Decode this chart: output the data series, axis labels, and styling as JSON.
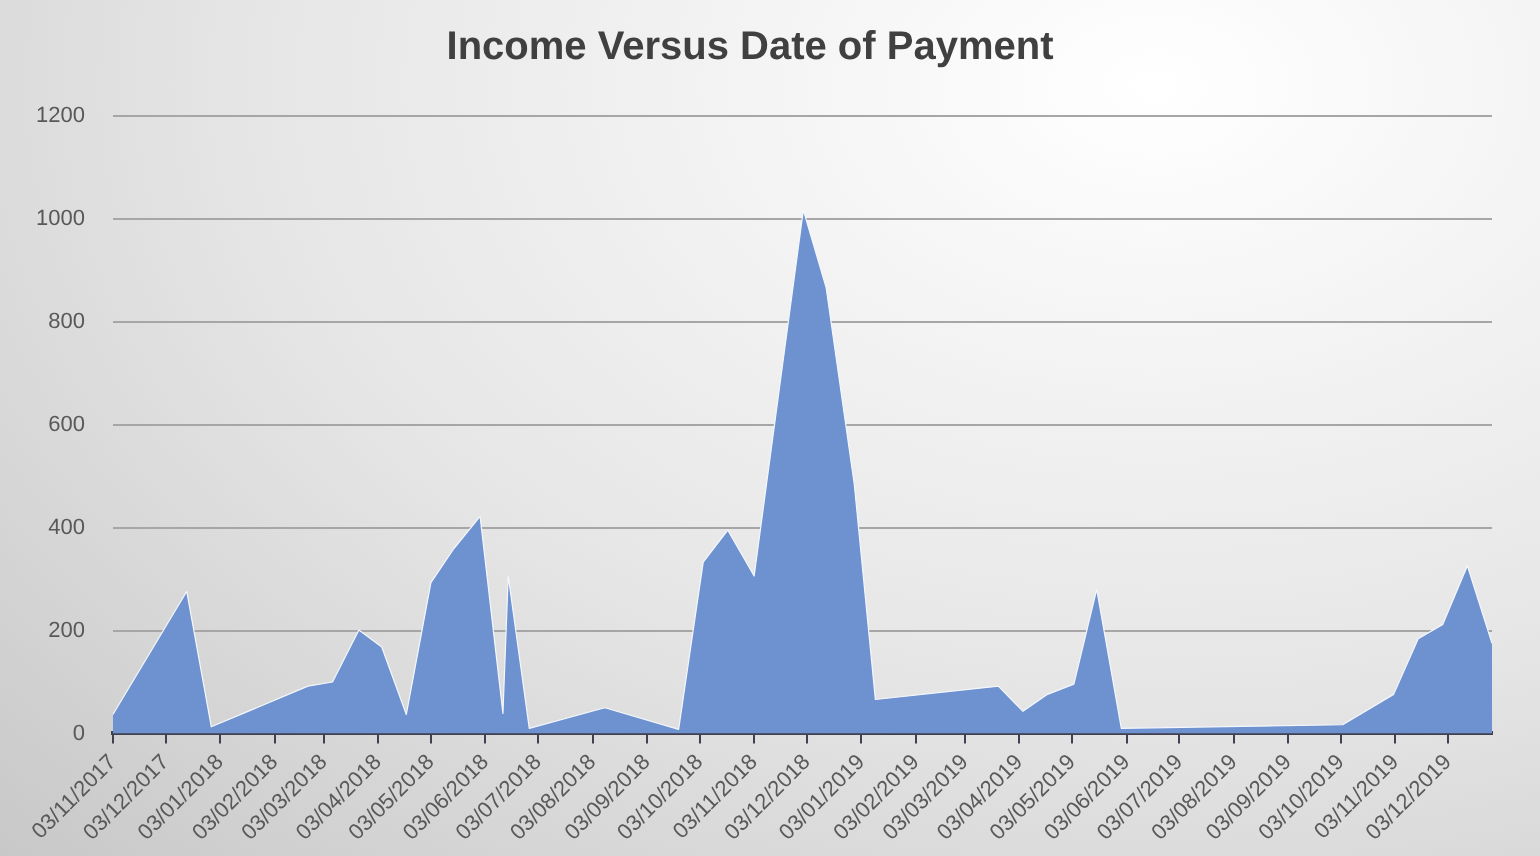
{
  "chart_data": {
    "type": "area",
    "title": "Income Versus Date of Payment",
    "x": [
      "2017-11-03",
      "2017-12-15",
      "2017-12-29",
      "2018-02-22",
      "2018-03-08",
      "2018-03-23",
      "2018-04-05",
      "2018-04-19",
      "2018-05-03",
      "2018-05-16",
      "2018-05-31",
      "2018-06-13",
      "2018-06-16",
      "2018-06-28",
      "2018-08-10",
      "2018-09-21",
      "2018-10-05",
      "2018-10-19",
      "2018-11-03",
      "2018-12-01",
      "2018-12-14",
      "2018-12-30",
      "2019-01-11",
      "2019-03-22",
      "2019-04-05",
      "2019-04-19",
      "2019-05-04",
      "2019-05-17",
      "2019-05-31",
      "2019-10-04",
      "2019-11-02",
      "2019-11-16",
      "2019-11-30",
      "2019-12-14",
      "2019-12-28"
    ],
    "values": [
      37,
      276,
      13,
      92,
      100,
      201,
      168,
      37,
      293,
      359,
      422,
      39,
      306,
      10,
      50,
      8,
      333,
      395,
      306,
      1017,
      866,
      484,
      66,
      92,
      43,
      76,
      96,
      280,
      10,
      17,
      76,
      184,
      212,
      326,
      175
    ],
    "color": "#6e92d0",
    "xlim": [
      "2017-11-03",
      "2019-12-28"
    ],
    "xticks": [
      {
        "value": "2017-11-03",
        "label": "03/11/2017"
      },
      {
        "value": "2017-12-03",
        "label": "03/12/2017"
      },
      {
        "value": "2018-01-03",
        "label": "03/01/2018"
      },
      {
        "value": "2018-02-03",
        "label": "03/02/2018"
      },
      {
        "value": "2018-03-03",
        "label": "03/03/2018"
      },
      {
        "value": "2018-04-03",
        "label": "03/04/2018"
      },
      {
        "value": "2018-05-03",
        "label": "03/05/2018"
      },
      {
        "value": "2018-06-03",
        "label": "03/06/2018"
      },
      {
        "value": "2018-07-03",
        "label": "03/07/2018"
      },
      {
        "value": "2018-08-03",
        "label": "03/08/2018"
      },
      {
        "value": "2018-09-03",
        "label": "03/09/2018"
      },
      {
        "value": "2018-10-03",
        "label": "03/10/2018"
      },
      {
        "value": "2018-11-03",
        "label": "03/11/2018"
      },
      {
        "value": "2018-12-03",
        "label": "03/12/2018"
      },
      {
        "value": "2019-01-03",
        "label": "03/01/2019"
      },
      {
        "value": "2019-02-03",
        "label": "03/02/2019"
      },
      {
        "value": "2019-03-03",
        "label": "03/03/2019"
      },
      {
        "value": "2019-04-03",
        "label": "03/04/2019"
      },
      {
        "value": "2019-05-03",
        "label": "03/05/2019"
      },
      {
        "value": "2019-06-03",
        "label": "03/06/2019"
      },
      {
        "value": "2019-07-03",
        "label": "03/07/2019"
      },
      {
        "value": "2019-08-03",
        "label": "03/08/2019"
      },
      {
        "value": "2019-09-03",
        "label": "03/09/2019"
      },
      {
        "value": "2019-10-03",
        "label": "03/10/2019"
      },
      {
        "value": "2019-11-03",
        "label": "03/11/2019"
      },
      {
        "value": "2019-12-03",
        "label": "03/12/2019"
      }
    ],
    "ylim": [
      0,
      1200
    ],
    "yticks": [
      0,
      200,
      400,
      600,
      800,
      1000,
      1200
    ],
    "grid": "y",
    "marker": "none"
  }
}
